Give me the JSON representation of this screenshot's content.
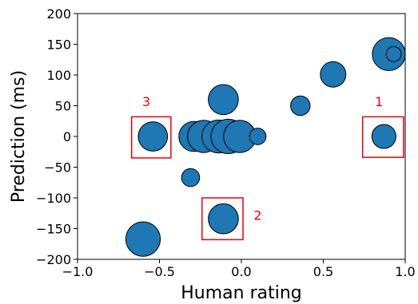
{
  "chart_data": {
    "type": "scatter",
    "title": "",
    "xlabel": "Human rating",
    "ylabel": "Prediction (ms)",
    "xlim": [
      -1.0,
      1.0
    ],
    "ylim": [
      -200,
      200
    ],
    "xticks": [
      -1.0,
      -0.5,
      0.0,
      0.5,
      1.0
    ],
    "xtick_labels": [
      "−1.0",
      "−0.5",
      "0.0",
      "0.5",
      "1.0"
    ],
    "yticks": [
      -200,
      -150,
      -100,
      -50,
      0,
      50,
      100,
      150,
      200
    ],
    "ytick_labels": [
      "−200",
      "−150",
      "−100",
      "−50",
      "0",
      "50",
      "100",
      "150",
      "200"
    ],
    "grid": false,
    "marker_color": "#1f77b4",
    "marker_edge_color": "#000000",
    "points": [
      {
        "x": 0.9,
        "y": 134,
        "size": 4.4
      },
      {
        "x": 0.93,
        "y": 134,
        "size": 2.0
      },
      {
        "x": 0.56,
        "y": 101,
        "size": 3.4
      },
      {
        "x": 0.36,
        "y": 50,
        "size": 2.6
      },
      {
        "x": 0.87,
        "y": 0,
        "size": 3.2
      },
      {
        "x": -0.11,
        "y": 60,
        "size": 4.0
      },
      {
        "x": -0.54,
        "y": 0,
        "size": 3.9
      },
      {
        "x": -0.29,
        "y": 0,
        "size": 4.0
      },
      {
        "x": -0.23,
        "y": 0,
        "size": 4.3
      },
      {
        "x": -0.14,
        "y": 0,
        "size": 4.4
      },
      {
        "x": -0.08,
        "y": 0,
        "size": 4.6
      },
      {
        "x": -0.01,
        "y": 0,
        "size": 4.3
      },
      {
        "x": 0.1,
        "y": 0,
        "size": 2.2
      },
      {
        "x": -0.31,
        "y": -67,
        "size": 2.4
      },
      {
        "x": -0.11,
        "y": -134,
        "size": 4.0
      },
      {
        "x": -0.6,
        "y": -167,
        "size": 4.6
      }
    ],
    "annotations": [
      {
        "label": "1",
        "box": {
          "x0": 0.74,
          "x1": 0.99,
          "y0": -34,
          "y1": 32
        },
        "label_pos": {
          "x": 0.84,
          "y": 57
        }
      },
      {
        "label": "2",
        "box": {
          "x0": -0.24,
          "x1": 0.01,
          "y0": -168,
          "y1": -100
        },
        "label_pos": {
          "x": 0.1,
          "y": -128
        }
      },
      {
        "label": "3",
        "box": {
          "x0": -0.67,
          "x1": -0.43,
          "y0": -35,
          "y1": 32
        },
        "label_pos": {
          "x": -0.58,
          "y": 57
        }
      }
    ],
    "annotation_color": "#e8000b"
  }
}
